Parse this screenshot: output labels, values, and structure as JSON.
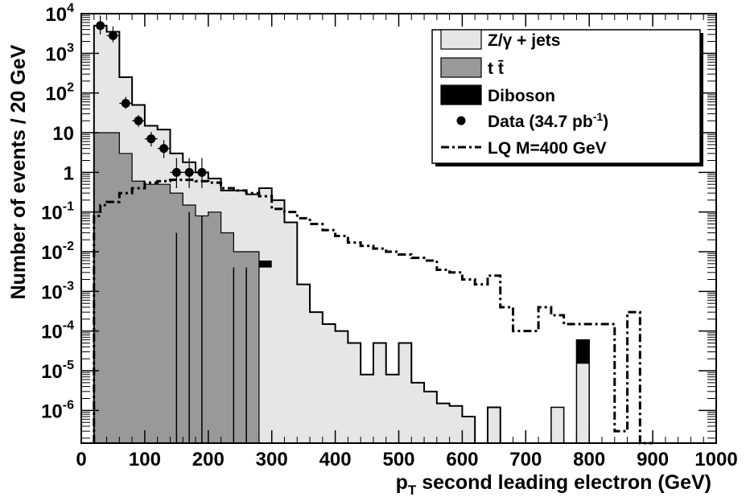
{
  "chart_data": {
    "type": "histogram",
    "xlabel": "p",
    "xlabel_sub": "T",
    "xlabel_rest": " second leading electron (GeV)",
    "ylabel": "Number of events / 20 GeV",
    "log_y": true,
    "xlim": [
      0,
      1000
    ],
    "ylim": [
      1.5e-07,
      10000
    ],
    "bin_width": 20,
    "x_ticks": [
      0,
      100,
      200,
      300,
      400,
      500,
      600,
      700,
      800,
      900,
      1000
    ],
    "x_tick_labels": [
      "0",
      "100",
      "200",
      "300",
      "400",
      "500",
      "600",
      "700",
      "800",
      "900",
      "1000"
    ],
    "y_ticks": [
      {
        "value": 1e-06,
        "base": "10",
        "exp": "-6"
      },
      {
        "value": 1e-05,
        "base": "10",
        "exp": "-5"
      },
      {
        "value": 0.0001,
        "base": "10",
        "exp": "-4"
      },
      {
        "value": 0.001,
        "base": "10",
        "exp": "-3"
      },
      {
        "value": 0.01,
        "base": "10",
        "exp": "-2"
      },
      {
        "value": 0.1,
        "base": "10",
        "exp": "-1"
      },
      {
        "value": 1,
        "base": "1",
        "exp": ""
      },
      {
        "value": 10,
        "base": "10",
        "exp": ""
      },
      {
        "value": 100,
        "base": "10",
        "exp": "2"
      },
      {
        "value": 1000,
        "base": "10",
        "exp": "3"
      },
      {
        "value": 10000,
        "base": "10",
        "exp": "4"
      }
    ],
    "legend_position": "top-right",
    "legend": [
      {
        "key": "zjets",
        "label": "Z/γ + jets"
      },
      {
        "key": "ttbar",
        "label": "t t̄"
      },
      {
        "key": "diboson",
        "label": "Diboson"
      },
      {
        "key": "data",
        "label_main": "Data (34.7 pb",
        "label_sup": "-1",
        "label_end": ")"
      },
      {
        "key": "lq",
        "label": "LQ M=400 GeV"
      }
    ],
    "colors": {
      "zjets": "#e6e6e6",
      "ttbar": "#999999",
      "diboson": "#000000",
      "data": "#000000",
      "lq": "#000000"
    },
    "series": {
      "stack_total": {
        "name": "Z/γ + jets",
        "x_low": [
          20,
          40,
          60,
          80,
          100,
          120,
          140,
          160,
          180,
          200,
          220,
          240,
          260,
          280,
          300,
          320,
          340,
          360,
          380,
          400,
          420,
          440,
          460,
          480,
          500,
          520,
          540,
          560,
          580,
          600,
          620,
          640,
          660
        ],
        "values": [
          5000,
          3500,
          250,
          50,
          15,
          12,
          3,
          1.8,
          1,
          0.7,
          0.35,
          0.35,
          0.28,
          0.4,
          0.2,
          0.055,
          0.0015,
          0.0003,
          0.00015,
          0.0001,
          5e-05,
          8e-06,
          5e-05,
          8e-06,
          5e-05,
          5e-06,
          3e-06,
          1.5e-06,
          1.3e-06,
          7e-07,
          0,
          1.2e-06,
          0
        ]
      },
      "ttbar": {
        "name": "t t̄",
        "x_low": [
          20,
          40,
          60,
          80,
          100,
          120,
          140,
          160,
          180,
          200,
          220,
          240,
          260,
          280
        ],
        "values": [
          10,
          10,
          3,
          0.6,
          0.5,
          0.5,
          0.3,
          0.15,
          0.08,
          0.1,
          0.03,
          0.01,
          0.01,
          0
        ]
      },
      "diboson": {
        "name": "Diboson",
        "bars": [
          {
            "x_low": 280,
            "x_high": 300,
            "low": 0.004,
            "high": 0.006
          },
          {
            "x_low": 780,
            "x_high": 800,
            "low": 1.5e-05,
            "high": 6e-05
          }
        ]
      },
      "mc_spikes": [
        {
          "x_low": 740,
          "x_high": 760,
          "value": 1.2e-06
        },
        {
          "x_low": 780,
          "x_high": 800,
          "value": 6e-05
        }
      ],
      "ttbar_lines": [
        {
          "x": 150,
          "value": 0.03
        },
        {
          "x": 170,
          "value": 0.1
        },
        {
          "x": 190,
          "value": 0.08
        },
        {
          "x": 240,
          "value": 0.004
        },
        {
          "x": 260,
          "value": 0.004
        }
      ],
      "data": {
        "name": "Data",
        "x": [
          30,
          50,
          70,
          90,
          110,
          130,
          150,
          170,
          190
        ],
        "y": [
          5000,
          2800,
          55,
          20,
          7,
          4,
          1,
          1,
          1
        ],
        "yerr_up": [
          4000,
          2000,
          25,
          8,
          3.5,
          2.5,
          1.3,
          1.3,
          1.3
        ],
        "yerr_down": [
          2000,
          900,
          15,
          6,
          2.5,
          1.7,
          0.6,
          0.6,
          0.6
        ]
      },
      "lq": {
        "name": "LQ M=400 GeV",
        "x_low": [
          20,
          30,
          40,
          60,
          80,
          100,
          120,
          140,
          160,
          180,
          200,
          220,
          240,
          260,
          280,
          300,
          320,
          340,
          360,
          380,
          400,
          420,
          440,
          460,
          480,
          500,
          520,
          540,
          560,
          580,
          600,
          620,
          640,
          660,
          680,
          700,
          720,
          740,
          760,
          780,
          800,
          820,
          840,
          860,
          880
        ],
        "values": [
          0.08,
          0.15,
          0.18,
          0.3,
          0.4,
          0.55,
          0.6,
          0.65,
          0.65,
          0.6,
          0.55,
          0.4,
          0.35,
          0.3,
          0.25,
          0.12,
          0.1,
          0.07,
          0.05,
          0.035,
          0.025,
          0.017,
          0.014,
          0.012,
          0.01,
          0.0085,
          0.007,
          0.006,
          0.0035,
          0.003,
          0.002,
          0.0015,
          0.0025,
          0.0004,
          0.0001,
          0.0001,
          0.0004,
          0.00025,
          0.00015,
          0.00015,
          0.00015,
          0.00015,
          3e-07,
          0.0003,
          0
        ]
      }
    }
  }
}
